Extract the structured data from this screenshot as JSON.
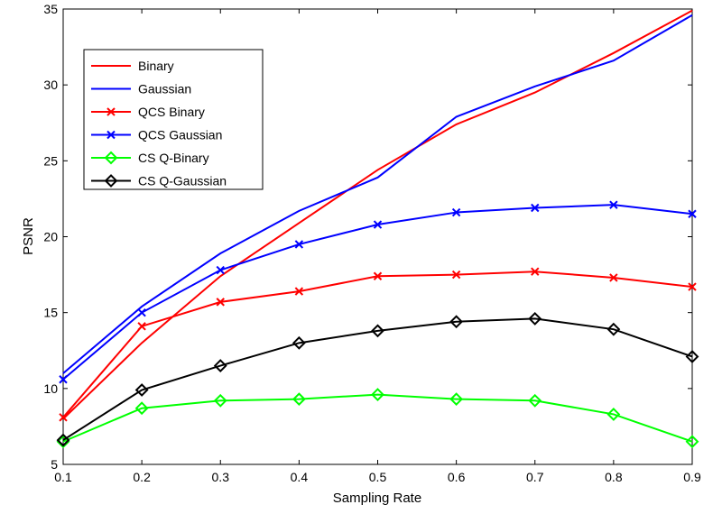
{
  "chart_data": {
    "type": "line",
    "xlabel": "Sampling Rate",
    "ylabel": "PSNR",
    "xlim": [
      0.1,
      0.9
    ],
    "ylim": [
      5,
      35
    ],
    "x": [
      0.1,
      0.2,
      0.3,
      0.4,
      0.5,
      0.6,
      0.7,
      0.8,
      0.9
    ],
    "x_ticks": [
      "0.1",
      "0.2",
      "0.3",
      "0.4",
      "0.5",
      "0.6",
      "0.7",
      "0.8",
      "0.9"
    ],
    "y_ticks": [
      "5",
      "10",
      "15",
      "20",
      "25",
      "30",
      "35"
    ],
    "legend_position": "top-left",
    "grid": false,
    "series": [
      {
        "name": "Binary",
        "color": "#ff0000",
        "marker": "none",
        "values": [
          8.0,
          13.0,
          17.4,
          20.9,
          24.4,
          27.4,
          29.5,
          32.1,
          34.9
        ]
      },
      {
        "name": "Gaussian",
        "color": "#0000ff",
        "marker": "none",
        "values": [
          11.0,
          15.4,
          18.9,
          21.7,
          23.9,
          27.9,
          29.9,
          31.6,
          34.6
        ]
      },
      {
        "name": "QCS Binary",
        "color": "#ff0000",
        "marker": "x",
        "values": [
          8.1,
          14.1,
          15.7,
          16.4,
          17.4,
          17.5,
          17.7,
          17.3,
          16.7
        ]
      },
      {
        "name": "QCS Gaussian",
        "color": "#0000ff",
        "marker": "x",
        "values": [
          10.6,
          15.0,
          17.8,
          19.5,
          20.8,
          21.6,
          21.9,
          22.1,
          21.5
        ]
      },
      {
        "name": "CS Q-Binary",
        "color": "#00ff00",
        "marker": "diamond",
        "values": [
          6.5,
          8.7,
          9.2,
          9.3,
          9.6,
          9.3,
          9.2,
          8.3,
          6.5
        ]
      },
      {
        "name": "CS Q-Gaussian",
        "color": "#000000",
        "marker": "diamond",
        "values": [
          6.6,
          9.9,
          11.5,
          13.0,
          13.8,
          14.4,
          14.6,
          13.9,
          12.1
        ]
      }
    ]
  }
}
